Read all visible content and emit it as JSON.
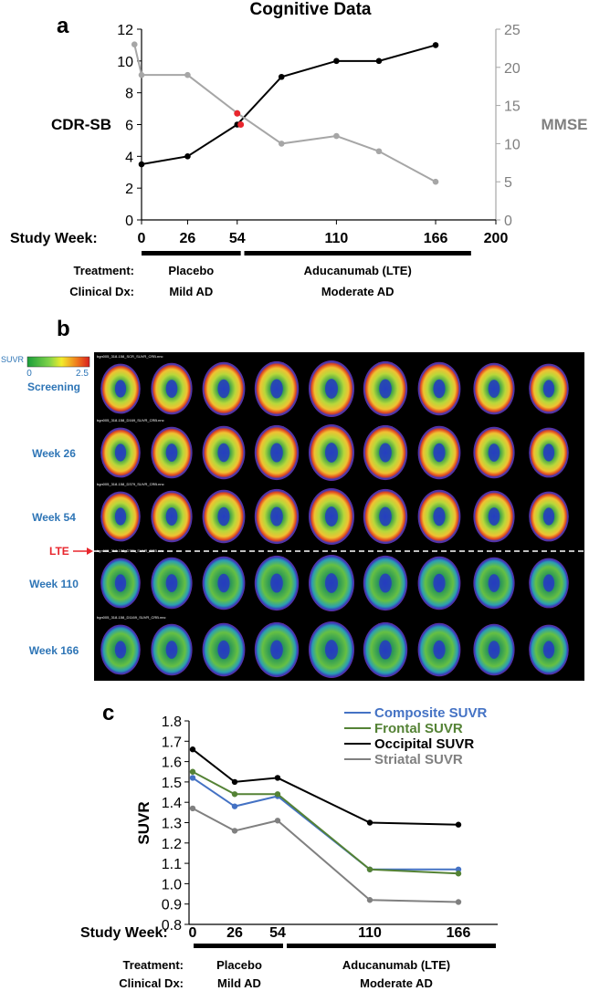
{
  "panel_a": {
    "letter": "a"
  },
  "panel_b": {
    "letter": "b"
  },
  "panel_c": {
    "letter": "c"
  },
  "scale": {
    "label": "SUVR",
    "min": "0",
    "max": "2.5"
  },
  "pet_rows": [
    "Screening",
    "Week 26",
    "Week 54",
    "Week 110",
    "Week 166"
  ],
  "pet_captions": [
    "bgn005_318-158_SCR_SUVR_CRB.nnc",
    "bgn005_318-158_D169_SUVR_CRB.nnc",
    "bgn005_318-158_D379_SUVR_CRB.nnc",
    "bgn005_318-158_D771_SUVR_CRB.nnc",
    "bgn005_318-158_D1169_SUVR_CRB.nnc"
  ],
  "lte_marker": "LTE",
  "chart_data": [
    {
      "type": "line",
      "title": "Cognitive Data",
      "ylabel": "CDR-SB",
      "y2label": "MMSE",
      "xlabel": "Study Week:",
      "xlim": [
        0,
        200
      ],
      "ylim": [
        0,
        12
      ],
      "y2lim": [
        0,
        25
      ],
      "x_ticks": [
        "0",
        "26",
        "54",
        "110",
        "166",
        "200"
      ],
      "y_ticks": [
        "0",
        "2",
        "4",
        "6",
        "8",
        "10",
        "12"
      ],
      "y2_ticks": [
        "0",
        "5",
        "10",
        "15",
        "20",
        "25"
      ],
      "series": [
        {
          "name": "CDR-SB",
          "axis": "left",
          "color": "#000000",
          "x": [
            0,
            26,
            54,
            79,
            110,
            134,
            166
          ],
          "y": [
            3.5,
            4,
            6,
            9,
            10,
            10,
            11
          ]
        },
        {
          "name": "MMSE",
          "axis": "right",
          "color": "#a6a6a6",
          "x": [
            -4,
            0,
            26,
            54,
            79,
            110,
            134,
            166
          ],
          "y": [
            23,
            19,
            19,
            14,
            10,
            11,
            9,
            5
          ]
        }
      ],
      "highlight_points": [
        {
          "x": 54,
          "y": 6.7
        },
        {
          "x": 56,
          "y": 6.0
        }
      ],
      "highlight_color": "#e8262d",
      "treatment_label": "Treatment:",
      "dx_label": "Clinical Dx:",
      "phases": [
        {
          "treatment": "Placebo",
          "dx": "Mild AD",
          "from": 0,
          "to": 56
        },
        {
          "treatment": "Aducanumab (LTE)",
          "dx": "Moderate AD",
          "from": 58,
          "to": 186
        }
      ]
    },
    {
      "type": "line",
      "title": "",
      "ylabel": "SUVR",
      "xlabel": "Study Week:",
      "x_categories": [
        "0",
        "26",
        "54",
        "110",
        "166"
      ],
      "ylim": [
        0.8,
        1.8
      ],
      "y_ticks": [
        "0.8",
        "0.9",
        "1.0",
        "1.1",
        "1.2",
        "1.3",
        "1.4",
        "1.5",
        "1.6",
        "1.7",
        "1.8"
      ],
      "legend_position": "top-right",
      "series": [
        {
          "name": "Composite SUVR",
          "color": "#4472c4",
          "values": [
            1.52,
            1.38,
            1.43,
            1.07,
            1.07
          ]
        },
        {
          "name": "Frontal SUVR",
          "color": "#548235",
          "values": [
            1.55,
            1.44,
            1.44,
            1.07,
            1.05
          ]
        },
        {
          "name": "Occipital SUVR",
          "color": "#000000",
          "values": [
            1.66,
            1.5,
            1.52,
            1.3,
            1.29
          ]
        },
        {
          "name": "Striatal SUVR",
          "color": "#808080",
          "values": [
            1.37,
            1.26,
            1.31,
            0.92,
            0.91
          ]
        }
      ],
      "treatment_label": "Treatment:",
      "dx_label": "Clinical Dx:",
      "phases": [
        {
          "treatment": "Placebo",
          "dx": "Mild AD"
        },
        {
          "treatment": "Aducanumab (LTE)",
          "dx": "Moderate AD"
        }
      ]
    }
  ]
}
